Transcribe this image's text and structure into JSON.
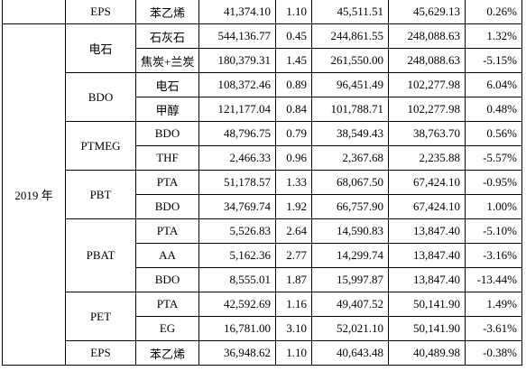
{
  "table": {
    "top_row": {
      "product": "EPS",
      "rows": [
        [
          "苯乙烯",
          "41,374.10",
          "1.10",
          "45,511.51",
          "45,629.13",
          "0.26%"
        ]
      ]
    },
    "year": "2019 年",
    "groups": [
      {
        "product": "电石",
        "rows": [
          [
            "石灰石",
            "544,136.77",
            "0.45",
            "244,861.55",
            "248,088.63",
            "1.32%"
          ],
          [
            "焦炭+兰炭",
            "180,379.31",
            "1.45",
            "261,550.00",
            "248,088.63",
            "-5.15%"
          ]
        ]
      },
      {
        "product": "BDO",
        "rows": [
          [
            "电石",
            "108,372.46",
            "0.89",
            "96,451.49",
            "102,277.98",
            "6.04%"
          ],
          [
            "甲醇",
            "121,177.04",
            "0.84",
            "101,788.71",
            "102,277.98",
            "0.48%"
          ]
        ]
      },
      {
        "product": "PTMEG",
        "rows": [
          [
            "BDO",
            "48,796.75",
            "0.79",
            "38,549.43",
            "38,763.70",
            "0.56%"
          ],
          [
            "THF",
            "2,466.33",
            "0.96",
            "2,367.68",
            "2,235.88",
            "-5.57%"
          ]
        ]
      },
      {
        "product": "PBT",
        "rows": [
          [
            "PTA",
            "51,178.57",
            "1.33",
            "68,067.50",
            "67,424.10",
            "-0.95%"
          ],
          [
            "BDO",
            "34,769.74",
            "1.92",
            "66,757.90",
            "67,424.10",
            "1.00%"
          ]
        ]
      },
      {
        "product": "PBAT",
        "rows": [
          [
            "PTA",
            "5,526.83",
            "2.64",
            "14,590.83",
            "13,847.40",
            "-5.10%"
          ],
          [
            "AA",
            "5,162.36",
            "2.77",
            "14,299.74",
            "13,847.40",
            "-3.16%"
          ],
          [
            "BDO",
            "8,555.01",
            "1.87",
            "15,997.87",
            "13,847.40",
            "-13.44%"
          ]
        ]
      },
      {
        "product": "PET",
        "rows": [
          [
            "PTA",
            "42,592.69",
            "1.16",
            "49,407.52",
            "50,141.90",
            "1.49%"
          ],
          [
            "EG",
            "16,781.00",
            "3.10",
            "52,021.10",
            "50,141.90",
            "-3.61%"
          ]
        ]
      },
      {
        "product": "EPS",
        "rows": [
          [
            "苯乙烯",
            "36,948.62",
            "1.10",
            "40,643.48",
            "40,489.98",
            "-0.38%"
          ]
        ]
      }
    ]
  }
}
